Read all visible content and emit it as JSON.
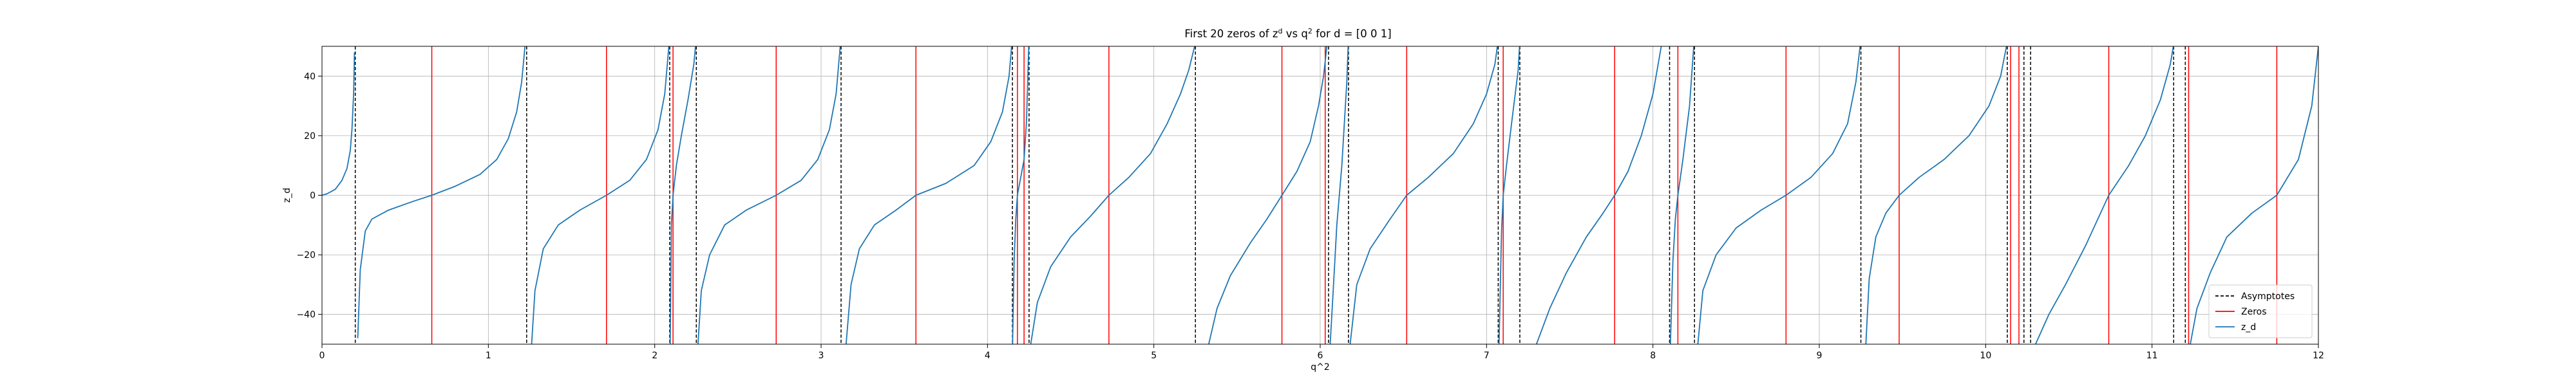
{
  "chart_data": {
    "type": "line",
    "title_parts": {
      "prefix": "First 20 zeros of z",
      "sup_1": "d",
      "middle": " vs q",
      "sup_2": "2",
      "suffix": " for d = [0 0 1]"
    },
    "xlabel": "q^2",
    "ylabel": "z_d",
    "xlim": [
      0,
      12
    ],
    "ylim": [
      -50,
      50
    ],
    "x_ticks": [
      0,
      1,
      2,
      3,
      4,
      5,
      6,
      7,
      8,
      9,
      10,
      11,
      12
    ],
    "y_ticks": [
      -40,
      -20,
      0,
      20,
      40
    ],
    "grid": true,
    "legend_position": "lower-right",
    "series": [
      {
        "name": "Asymptotes",
        "kind": "vertical-lines",
        "style": "dashed",
        "color": "#000000",
        "x": [
          0.2,
          1.23,
          2.09,
          2.25,
          3.12,
          4.15,
          4.25,
          5.25,
          6.05,
          6.17,
          7.07,
          7.2,
          8.1,
          8.25,
          9.25,
          10.13,
          10.23,
          10.27,
          11.13,
          11.2
        ]
      },
      {
        "name": "Zeros",
        "kind": "vertical-lines",
        "style": "solid",
        "color": "#ff0000",
        "x": [
          0.66,
          1.71,
          2.11,
          2.73,
          3.57,
          4.18,
          4.22,
          4.73,
          5.77,
          6.03,
          6.52,
          7.1,
          7.77,
          8.15,
          8.8,
          9.48,
          10.15,
          10.2,
          10.74,
          11.22,
          11.75
        ]
      },
      {
        "name": "z_d",
        "kind": "curve",
        "style": "solid",
        "color": "#1f77b4",
        "branches": [
          {
            "x": [
              0.0,
              0.03,
              0.08,
              0.12,
              0.15,
              0.17,
              0.18,
              0.19,
              0.195
            ],
            "y": [
              0,
              0.5,
              2,
              5,
              9,
              15,
              22,
              34,
              48
            ]
          },
          {
            "x": [
              0.215,
              0.23,
              0.26,
              0.3,
              0.4,
              0.55,
              0.66,
              0.8,
              0.95,
              1.05,
              1.12,
              1.17,
              1.2,
              1.22
            ],
            "y": [
              -48,
              -25,
              -12,
              -8,
              -5,
              -2,
              0,
              3,
              7,
              12,
              19,
              28,
              38,
              50
            ]
          },
          {
            "x": [
              1.26,
              1.28,
              1.33,
              1.42,
              1.55,
              1.71,
              1.85,
              1.95,
              2.02,
              2.06,
              2.085
            ],
            "y": [
              -50,
              -32,
              -18,
              -10,
              -5,
              0,
              5,
              12,
              22,
              34,
              50
            ]
          },
          {
            "x": [
              2.093,
              2.1,
              2.11,
              2.13,
              2.16,
              2.2,
              2.235,
              2.245
            ],
            "y": [
              -50,
              -10,
              0,
              10,
              20,
              32,
              44,
              50
            ]
          },
          {
            "x": [
              2.26,
              2.28,
              2.33,
              2.42,
              2.55,
              2.73,
              2.88,
              2.98,
              3.05,
              3.09,
              3.115
            ],
            "y": [
              -50,
              -32,
              -20,
              -10,
              -5,
              0,
              5,
              12,
              22,
              34,
              50
            ]
          },
          {
            "x": [
              3.15,
              3.18,
              3.23,
              3.32,
              3.45,
              3.57,
              3.75,
              3.92,
              4.02,
              4.09,
              4.13,
              4.145
            ],
            "y": [
              -50,
              -30,
              -18,
              -10,
              -5,
              0,
              4,
              10,
              18,
              28,
              40,
              50
            ]
          },
          {
            "x": [
              4.151,
              4.16,
              4.17,
              4.18,
              4.2,
              4.22,
              4.235,
              4.248
            ],
            "y": [
              -50,
              -22,
              -8,
              0,
              6,
              12,
              25,
              50
            ]
          },
          {
            "x": [
              4.26,
              4.3,
              4.38,
              4.5,
              4.62,
              4.73,
              4.85,
              4.98,
              5.08,
              5.16,
              5.21,
              5.245
            ],
            "y": [
              -50,
              -36,
              -24,
              -14,
              -7,
              0,
              6,
              14,
              24,
              34,
              42,
              50
            ]
          },
          {
            "x": [
              5.33,
              5.38,
              5.46,
              5.58,
              5.68,
              5.77,
              5.86,
              5.94,
              5.99,
              6.02,
              6.04
            ],
            "y": [
              -50,
              -38,
              -27,
              -16,
              -8,
              0,
              8,
              18,
              30,
              40,
              50
            ]
          },
          {
            "x": [
              6.06,
              6.08,
              6.1,
              6.13,
              6.16,
              6.168
            ],
            "y": [
              -50,
              -30,
              -10,
              10,
              38,
              50
            ]
          },
          {
            "x": [
              6.18,
              6.22,
              6.3,
              6.42,
              6.52,
              6.65,
              6.8,
              6.92,
              7.0,
              7.05,
              7.065
            ],
            "y": [
              -50,
              -30,
              -18,
              -8,
              0,
              6,
              14,
              24,
              34,
              44,
              50
            ]
          },
          {
            "x": [
              7.075,
              7.09,
              7.1,
              7.12,
              7.15,
              7.19,
              7.198
            ],
            "y": [
              -50,
              -12,
              0,
              10,
              24,
              42,
              50
            ]
          },
          {
            "x": [
              7.3,
              7.38,
              7.48,
              7.6,
              7.7,
              7.77,
              7.85,
              7.93,
              8.0,
              8.05
            ],
            "y": [
              -50,
              -38,
              -26,
              -14,
              -6,
              0,
              8,
              20,
              34,
              50
            ]
          },
          {
            "x": [
              8.105,
              8.12,
              8.135,
              8.15,
              8.18,
              8.22,
              8.245
            ],
            "y": [
              -50,
              -22,
              -8,
              0,
              12,
              30,
              50
            ]
          },
          {
            "x": [
              8.27,
              8.3,
              8.38,
              8.5,
              8.65,
              8.8,
              8.95,
              9.08,
              9.17,
              9.22,
              9.245
            ],
            "y": [
              -50,
              -32,
              -20,
              -11,
              -5,
              0,
              6,
              14,
              24,
              38,
              50
            ]
          },
          {
            "x": [
              9.28,
              9.3,
              9.34,
              9.4,
              9.48,
              9.6,
              9.75,
              9.9,
              10.02,
              10.09,
              10.125
            ],
            "y": [
              -50,
              -28,
              -14,
              -6,
              0,
              6,
              12,
              20,
              30,
              40,
              50
            ]
          },
          {
            "x": [
              10.3,
              10.38,
              10.48,
              10.6,
              10.74,
              10.86,
              10.96,
              11.05,
              11.11,
              11.128
            ],
            "y": [
              -50,
              -40,
              -30,
              -17,
              0,
              10,
              20,
              32,
              44,
              50
            ]
          },
          {
            "x": [
              11.23,
              11.27,
              11.35,
              11.45,
              11.6,
              11.75,
              11.88,
              11.96,
              12.0
            ],
            "y": [
              -50,
              -38,
              -26,
              -14,
              -6,
              0,
              12,
              30,
              50
            ]
          }
        ]
      }
    ]
  }
}
